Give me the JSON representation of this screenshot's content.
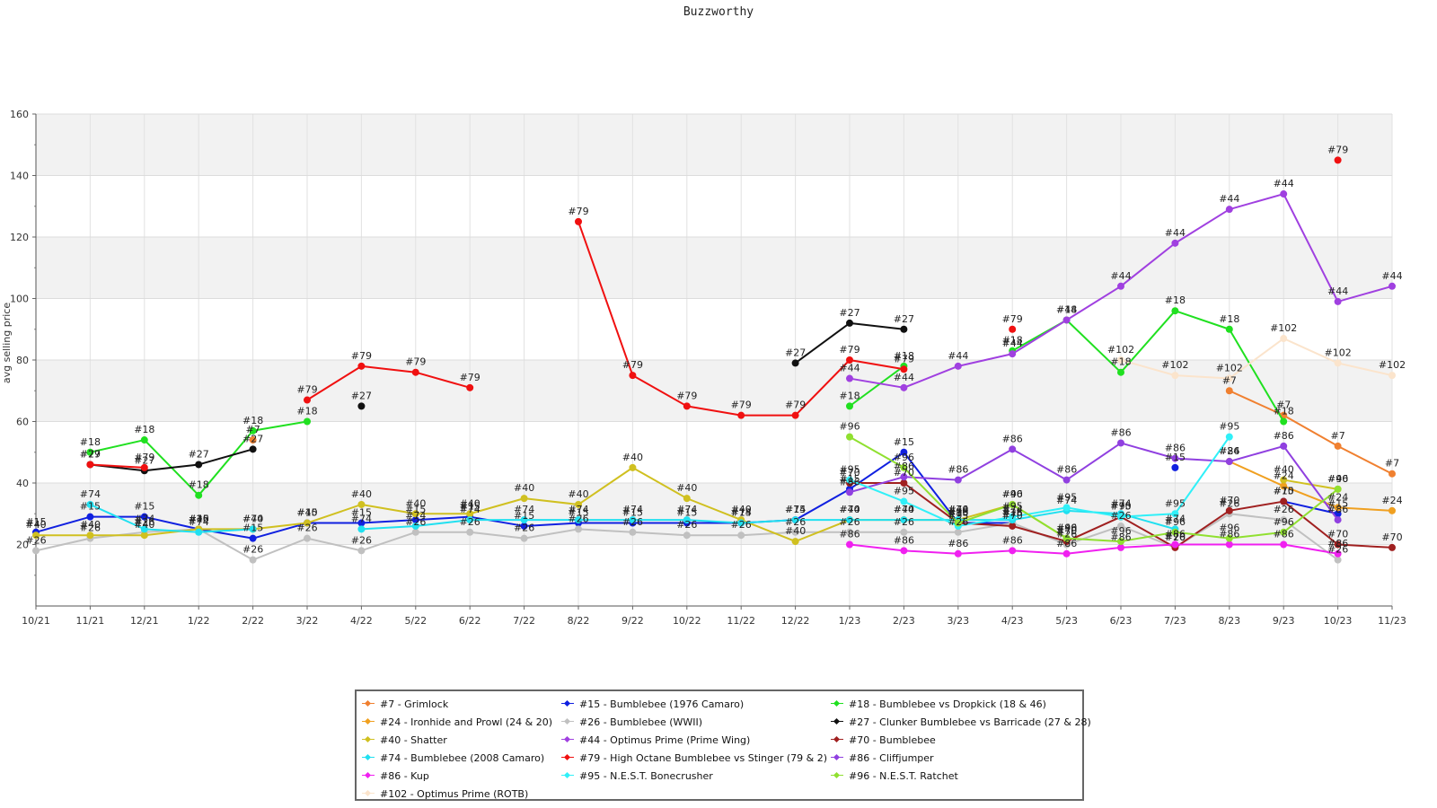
{
  "chart_data": {
    "type": "line",
    "title": "Buzzworthy",
    "ylabel": "avg selling price",
    "xlabel": "",
    "ylim": [
      0,
      160
    ],
    "yticks": [
      20,
      40,
      60,
      80,
      100,
      120,
      140,
      160
    ],
    "grid": true,
    "legend_position": "bottom",
    "categories": [
      "10/21",
      "11/21",
      "12/21",
      "1/22",
      "2/22",
      "3/22",
      "4/22",
      "5/22",
      "6/22",
      "7/22",
      "8/22",
      "9/22",
      "10/22",
      "11/22",
      "12/22",
      "1/23",
      "2/23",
      "3/23",
      "4/23",
      "5/23",
      "6/23",
      "7/23",
      "8/23",
      "9/23",
      "10/23",
      "11/23"
    ],
    "series": [
      {
        "name": "#7 - Grimlock",
        "label": "#7",
        "color": "#f08030",
        "values": [
          null,
          null,
          null,
          null,
          54,
          null,
          null,
          null,
          null,
          null,
          null,
          null,
          null,
          null,
          null,
          null,
          null,
          null,
          null,
          null,
          null,
          null,
          70,
          62,
          52,
          43
        ]
      },
      {
        "name": "#15 - Bumblebee (1976 Camaro)",
        "label": "#15",
        "color": "#1020e0",
        "values": [
          24,
          29,
          29,
          25,
          22,
          27,
          27,
          28,
          29,
          26,
          27,
          27,
          27,
          27,
          28,
          38,
          50,
          27,
          27,
          null,
          null,
          45,
          null,
          34,
          30,
          null
        ]
      },
      {
        "name": "#18 - Bumblebee vs Dropkick (18 & 46)",
        "label": "#18",
        "color": "#20e020",
        "values": [
          null,
          50,
          54,
          36,
          57,
          60,
          null,
          null,
          null,
          null,
          null,
          null,
          null,
          null,
          null,
          65,
          78,
          null,
          83,
          93,
          76,
          96,
          90,
          60,
          null,
          null
        ]
      },
      {
        "name": "#24 - Ironhide and Prowl (24 & 20)",
        "label": "#24",
        "color": "#f0a020",
        "values": [
          null,
          null,
          null,
          null,
          null,
          null,
          null,
          null,
          null,
          null,
          null,
          null,
          null,
          null,
          null,
          null,
          null,
          null,
          null,
          null,
          null,
          null,
          47,
          39,
          32,
          31
        ]
      },
      {
        "name": "#26 - Bumblebee (WWII)",
        "label": "#26",
        "color": "#c0c0c0",
        "values": [
          18,
          22,
          24,
          25,
          15,
          22,
          18,
          24,
          24,
          22,
          25,
          24,
          23,
          23,
          24,
          24,
          24,
          24,
          27,
          20,
          26,
          19,
          30,
          28,
          15,
          null
        ]
      },
      {
        "name": "#27 - Clunker Bumblebee vs Barricade (27 & 28)",
        "label": "#27",
        "color": "#111111",
        "values": [
          null,
          46,
          44,
          46,
          51,
          null,
          65,
          null,
          null,
          null,
          null,
          null,
          null,
          null,
          79,
          92,
          90,
          null,
          null,
          null,
          null,
          null,
          null,
          null,
          null,
          null
        ]
      },
      {
        "name": "#40 - Shatter",
        "label": "#40",
        "color": "#d0c020",
        "values": [
          23,
          23,
          23,
          25,
          25,
          27,
          33,
          30,
          30,
          35,
          33,
          45,
          35,
          28,
          21,
          28,
          28,
          28,
          33,
          22,
          null,
          null,
          null,
          41,
          38,
          null
        ]
      },
      {
        "name": "#44 - Optimus Prime (Prime Wing)",
        "label": "#44",
        "color": "#a040e0",
        "values": [
          null,
          null,
          null,
          null,
          null,
          null,
          null,
          null,
          null,
          null,
          null,
          null,
          null,
          null,
          null,
          74,
          71,
          78,
          82,
          93,
          104,
          118,
          129,
          134,
          99,
          104
        ]
      },
      {
        "name": "#70 - Bumblebee",
        "label": "#70",
        "color": "#a02020",
        "values": [
          null,
          null,
          null,
          null,
          null,
          null,
          null,
          null,
          null,
          null,
          null,
          null,
          null,
          null,
          null,
          40,
          40,
          27,
          26,
          21,
          29,
          19,
          31,
          34,
          20,
          19
        ]
      },
      {
        "name": "#74 - Bumblebee (2008 Camaro)",
        "label": "#74",
        "color": "#20e0f0",
        "values": [
          null,
          33,
          25,
          24,
          25,
          null,
          25,
          26,
          28,
          28,
          28,
          28,
          28,
          27,
          28,
          28,
          28,
          28,
          28,
          31,
          30,
          25,
          null,
          null,
          null,
          null
        ]
      },
      {
        "name": "#79 - High Octane Bumblebee vs Stinger (79 & 2)",
        "label": "#79",
        "color": "#f01010",
        "values": [
          null,
          46,
          45,
          null,
          null,
          67,
          78,
          76,
          71,
          null,
          125,
          75,
          65,
          62,
          62,
          80,
          77,
          null,
          90,
          null,
          null,
          null,
          null,
          null,
          145,
          null
        ]
      },
      {
        "name": "#86 - Cliffjumper",
        "label": "#86",
        "color": "#9040e0",
        "values": [
          null,
          null,
          null,
          null,
          null,
          null,
          null,
          null,
          null,
          null,
          null,
          null,
          null,
          null,
          null,
          37,
          42,
          41,
          51,
          41,
          53,
          48,
          47,
          52,
          28,
          null
        ]
      },
      {
        "name": "#86 - Kup",
        "label": "#86",
        "color": "#f020f0",
        "values": [
          null,
          null,
          null,
          null,
          null,
          null,
          null,
          null,
          null,
          null,
          null,
          null,
          null,
          null,
          null,
          20,
          18,
          17,
          18,
          17,
          19,
          20,
          20,
          20,
          17,
          null
        ]
      },
      {
        "name": "#95 - N.E.S.T. Bonecrusher",
        "label": "#95",
        "color": "#30f0f8",
        "values": [
          null,
          null,
          null,
          null,
          null,
          null,
          null,
          null,
          null,
          null,
          null,
          null,
          null,
          null,
          null,
          41,
          34,
          26,
          29,
          32,
          29,
          30,
          55,
          null,
          null,
          null
        ]
      },
      {
        "name": "#96 - N.E.S.T. Ratchet",
        "label": "#96",
        "color": "#90e030",
        "values": [
          null,
          null,
          null,
          null,
          null,
          null,
          null,
          null,
          null,
          null,
          null,
          null,
          null,
          null,
          null,
          55,
          45,
          27,
          33,
          22,
          21,
          24,
          22,
          24,
          38,
          null
        ]
      },
      {
        "name": "#102 - Optimus Prime (ROTB)",
        "label": "#102",
        "color": "#fbe4cc",
        "values": [
          null,
          null,
          null,
          null,
          null,
          null,
          null,
          null,
          null,
          null,
          null,
          null,
          null,
          null,
          null,
          null,
          null,
          null,
          null,
          null,
          80,
          75,
          74,
          87,
          79,
          75
        ]
      }
    ]
  }
}
